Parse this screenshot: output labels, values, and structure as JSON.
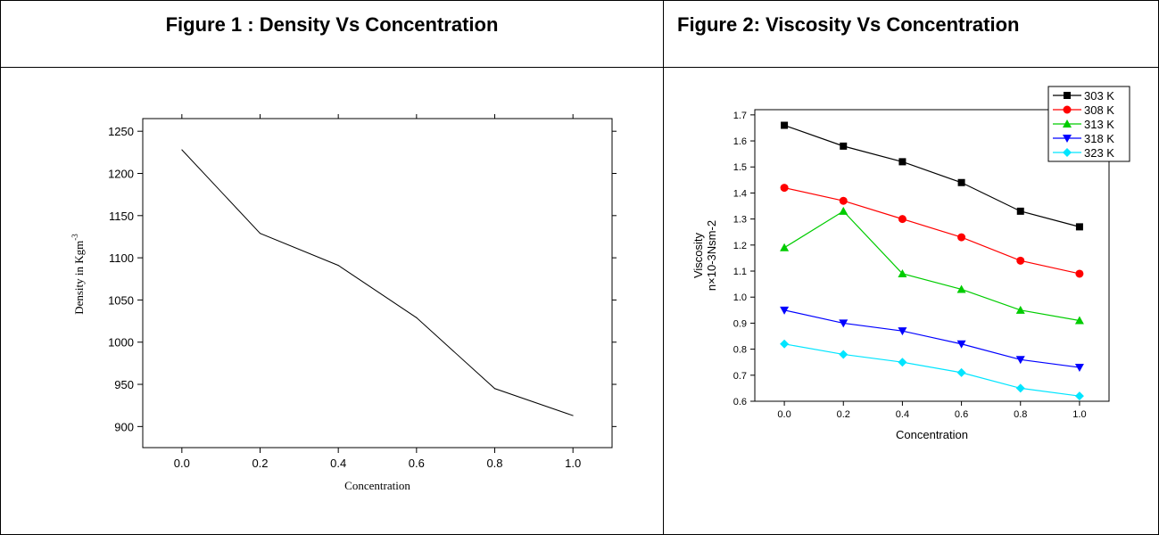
{
  "figures": [
    {
      "title": "Figure 1 : Density Vs Concentration"
    },
    {
      "title": "Figure 2:  Viscosity Vs Concentration"
    }
  ],
  "chart_data": [
    {
      "type": "line",
      "xlabel": "Concentration",
      "ylabel": "Density in Kgm",
      "ylabel_superscript": "-3",
      "x": [
        0.0,
        0.2,
        0.4,
        0.6,
        0.8,
        1.0
      ],
      "xticks": [
        "0.0",
        "0.2",
        "0.4",
        "0.6",
        "0.8",
        "1.0"
      ],
      "yticks": [
        "900",
        "950",
        "1000",
        "1050",
        "1100",
        "1150",
        "1200",
        "1250"
      ],
      "xlim": [
        -0.1,
        1.1
      ],
      "ylim": [
        875,
        1265
      ],
      "series": [
        {
          "values": [
            1228,
            1129,
            1091,
            1029,
            945,
            913
          ],
          "color": "#000000"
        }
      ],
      "grid": false
    },
    {
      "type": "line",
      "xlabel": "Concentration",
      "ylabel_line1": "Viscosity",
      "ylabel_line2": "n×10-3Nsm-2",
      "x": [
        0.0,
        0.2,
        0.4,
        0.6,
        0.8,
        1.0
      ],
      "xticks": [
        "0.0",
        "0.2",
        "0.4",
        "0.6",
        "0.8",
        "1.0"
      ],
      "yticks": [
        "0.6",
        "0.7",
        "0.8",
        "0.9",
        "1.0",
        "1.1",
        "1.2",
        "1.3",
        "1.4",
        "1.5",
        "1.6",
        "1.7"
      ],
      "xlim": [
        -0.1,
        1.1
      ],
      "ylim": [
        0.6,
        1.72
      ],
      "legend_position": "top-right",
      "grid": false,
      "series": [
        {
          "name": "303 K",
          "values": [
            1.66,
            1.58,
            1.52,
            1.44,
            1.33,
            1.27
          ],
          "color": "#000000",
          "marker": "square"
        },
        {
          "name": "308 K",
          "values": [
            1.42,
            1.37,
            1.3,
            1.23,
            1.14,
            1.09
          ],
          "color": "#ff0000",
          "marker": "circle"
        },
        {
          "name": "313 K",
          "values": [
            1.19,
            1.33,
            1.09,
            1.03,
            0.95,
            0.91
          ],
          "color": "#00cc00",
          "marker": "triangle-up"
        },
        {
          "name": "318 K",
          "values": [
            0.95,
            0.9,
            0.87,
            0.82,
            0.76,
            0.73
          ],
          "color": "#0000ff",
          "marker": "triangle-down"
        },
        {
          "name": "323 K",
          "values": [
            0.82,
            0.78,
            0.75,
            0.71,
            0.65,
            0.62
          ],
          "color": "#00e5ff",
          "marker": "diamond"
        }
      ]
    }
  ]
}
